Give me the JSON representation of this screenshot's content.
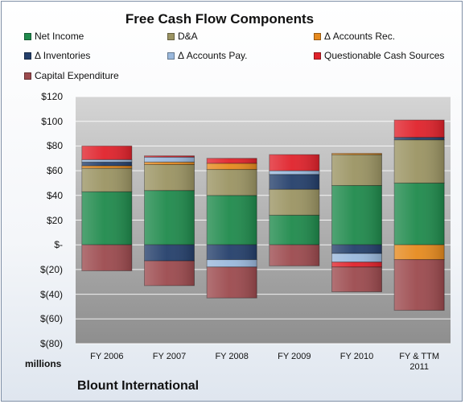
{
  "chart_data": {
    "type": "bar",
    "stacked": true,
    "title": "Free Cash Flow Components",
    "units_label": "millions",
    "company": "Blount International",
    "categories": [
      "FY 2006",
      "FY 2007",
      "FY 2008",
      "FY 2009",
      "FY 2010",
      "FY & TTM 2011"
    ],
    "ylim": [
      -80,
      120
    ],
    "yticks": [
      120,
      100,
      80,
      60,
      40,
      20,
      0,
      -20,
      -40,
      -60,
      -80
    ],
    "ytick_labels": [
      "$120",
      "$100",
      "$80",
      "$60",
      "$40",
      "$20",
      "$-",
      "$(20)",
      "$(40)",
      "$(60)",
      "$(80)"
    ],
    "grid": true,
    "legend_placement": "top",
    "series": [
      {
        "name": "Net Income",
        "color": "#1f8a4c",
        "values": [
          43,
          44,
          40,
          24,
          48,
          50
        ]
      },
      {
        "name": "D&A",
        "color": "#9b9463",
        "values": [
          19,
          21,
          21,
          21,
          25,
          35
        ]
      },
      {
        "name": "Δ Accounts Rec.",
        "color": "#e68a1e",
        "values": [
          2,
          2,
          5,
          0,
          1,
          -12
        ]
      },
      {
        "name": "Δ Inventories",
        "color": "#243f6b",
        "values": [
          3,
          -13,
          -12,
          12,
          -7,
          2
        ]
      },
      {
        "name": "Δ Accounts Pay.",
        "color": "#9ab8dc",
        "values": [
          2,
          4,
          -6,
          3,
          -7,
          0
        ]
      },
      {
        "name": "Questionable Cash Sources",
        "color": "#e0222b",
        "values": [
          11,
          1,
          4,
          13,
          -4,
          14
        ]
      },
      {
        "name": "Capital Expenditure",
        "color": "#9c4a4e",
        "values": [
          -21,
          -20,
          -25,
          -17,
          -20,
          -41
        ]
      }
    ]
  }
}
